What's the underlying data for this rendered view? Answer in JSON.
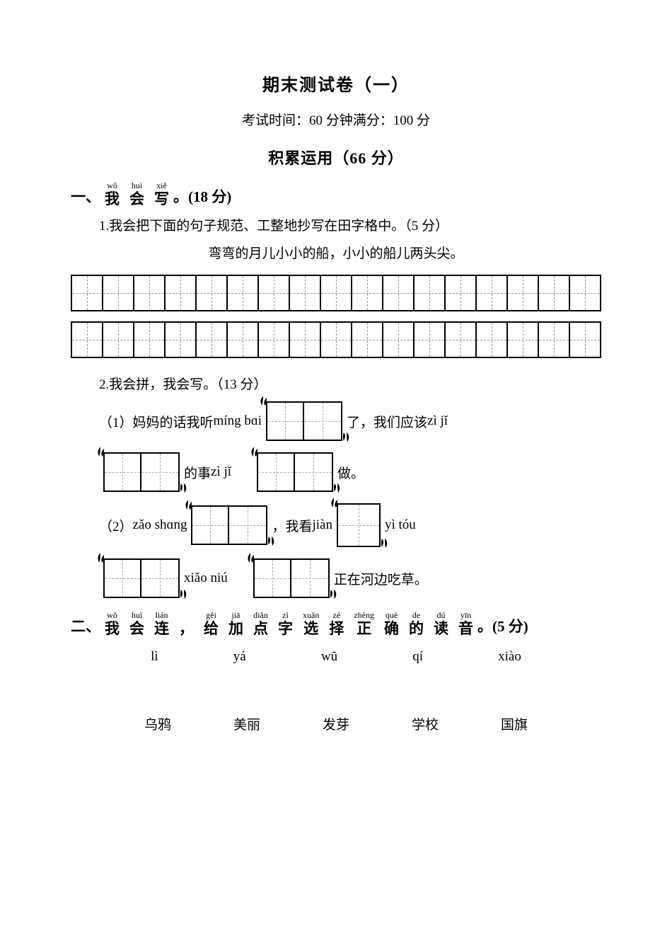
{
  "title": "期末测试卷（一）",
  "exam_info": "考试时间：60 分钟满分：100 分",
  "section_title": "积累运用（66 分）",
  "q1": {
    "number": "一、",
    "ruby": [
      {
        "py": "wǒ",
        "hz": "我"
      },
      {
        "py": "huì",
        "hz": "会"
      },
      {
        "py": "xiě",
        "hz": "写"
      }
    ],
    "suffix": "。(18 分)",
    "sub1_label": "1.我会把下面的句子规范、工整地抄写在田字格中。（5 分）",
    "sentence": "弯弯的月儿小小的船，小小的船儿两头尖。",
    "grid_cells_per_row": 17,
    "sub2_label": "2.我会拼，我会写。（13 分）",
    "line1_prefix": "（1）妈妈的话我听 ",
    "line1_py1": "míng bɑi",
    "line1_mid1": " 了，我们应该 ",
    "line1_py2": "zì jǐ",
    "line1b_mid": " 的事 ",
    "line1b_py": "zì jǐ",
    "line1b_end": " 做。",
    "line2_prefix": "（2）",
    "line2_py1": "zǎo shɑng",
    "line2_mid1": " ，我看 ",
    "line2_py2": "jiàn",
    "line2_tail_py": "yì tóu",
    "line2b_py1": "xiǎo niú",
    "line2b_end": " 正在河边吃草。"
  },
  "q2": {
    "number": "二、",
    "ruby": [
      {
        "py": "wǒ",
        "hz": "我"
      },
      {
        "py": "huì",
        "hz": "会"
      },
      {
        "py": "lián",
        "hz": "连"
      },
      {
        "py": "",
        "hz": "，"
      },
      {
        "py": "gěi",
        "hz": "给"
      },
      {
        "py": "jiā",
        "hz": "加"
      },
      {
        "py": "diǎn",
        "hz": "点"
      },
      {
        "py": "zì",
        "hz": "字"
      },
      {
        "py": "xuǎn",
        "hz": "选"
      },
      {
        "py": "zé",
        "hz": "择"
      },
      {
        "py": "zhèng",
        "hz": "正"
      },
      {
        "py": "què",
        "hz": "确"
      },
      {
        "py": "de",
        "hz": "的"
      },
      {
        "py": "dú",
        "hz": "读"
      },
      {
        "py": "yīn",
        "hz": "音"
      }
    ],
    "suffix": "。(5 分)",
    "pinyin_row": [
      "lì",
      "yá",
      "wū",
      "qí",
      "xiào"
    ],
    "hanzi_row": [
      "乌鸦",
      "美丽",
      "发芽",
      "学校",
      "国旗"
    ]
  },
  "colors": {
    "text": "#000000",
    "background": "#ffffff",
    "dash": "#aaaaaa"
  }
}
